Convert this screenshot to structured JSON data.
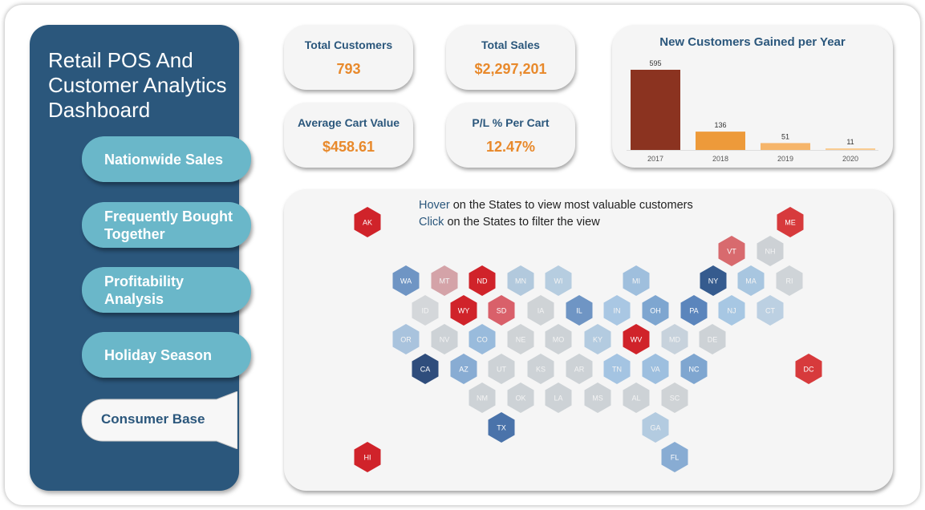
{
  "sidebar": {
    "title": "Retail POS And\nCustomer Analytics\nDashboard",
    "nav": [
      {
        "label": "Nationwide Sales"
      },
      {
        "label": "Frequently Bought\nTogether"
      },
      {
        "label": "Profitability\nAnalysis"
      },
      {
        "label": "Holiday Season"
      }
    ],
    "active": {
      "label": "Consumer Base"
    }
  },
  "kpis": [
    {
      "label": "Total Customers",
      "value": "793"
    },
    {
      "label": "Total Sales",
      "value": "$2,297,201"
    },
    {
      "label": "Average Cart Value",
      "value": "$458.61"
    },
    {
      "label": "P/L % Per Cart",
      "value": "12.47%"
    }
  ],
  "chart_data": {
    "type": "bar",
    "title": "New Customers Gained per Year",
    "categories": [
      "2017",
      "2018",
      "2019",
      "2020"
    ],
    "values": [
      595,
      136,
      51,
      11
    ],
    "colors": [
      "#8b3320",
      "#ed9a3a",
      "#f6b56a",
      "#f9cc92"
    ],
    "xlabel": "",
    "ylabel": "",
    "grid": false
  },
  "map": {
    "hover_word": "Hover",
    "hover_rest": " on the States to view most valuable customers",
    "click_word": "Click",
    "click_rest": " on the States to filter the view",
    "states": [
      {
        "code": "AK",
        "color": "#d0232a"
      },
      {
        "code": "ME",
        "color": "#d73a3c"
      },
      {
        "code": "VT",
        "color": "#d86a6e"
      },
      {
        "code": "NH",
        "color": "#cdd1d5"
      },
      {
        "code": "WA",
        "color": "#6f95c4"
      },
      {
        "code": "MT",
        "color": "#d4a3a8"
      },
      {
        "code": "ND",
        "color": "#d0232a"
      },
      {
        "code": "MN",
        "color": "#b2c9dd"
      },
      {
        "code": "WI",
        "color": "#b6cde0"
      },
      {
        "code": "MI",
        "color": "#9fbfdd"
      },
      {
        "code": "NY",
        "color": "#355b8e"
      },
      {
        "code": "MA",
        "color": "#a8c6e0"
      },
      {
        "code": "RI",
        "color": "#cfd4d8"
      },
      {
        "code": "ID",
        "color": "#d4d7da"
      },
      {
        "code": "WY",
        "color": "#d0232a"
      },
      {
        "code": "SD",
        "color": "#d9606a"
      },
      {
        "code": "IA",
        "color": "#cfd3d6"
      },
      {
        "code": "IL",
        "color": "#6f95c4"
      },
      {
        "code": "IN",
        "color": "#a9c7e3"
      },
      {
        "code": "OH",
        "color": "#7ea6d0"
      },
      {
        "code": "PA",
        "color": "#5b85bc"
      },
      {
        "code": "NJ",
        "color": "#a7c7e3"
      },
      {
        "code": "CT",
        "color": "#bcd0e2"
      },
      {
        "code": "OR",
        "color": "#a9c3dd"
      },
      {
        "code": "NV",
        "color": "#cdd2d6"
      },
      {
        "code": "CO",
        "color": "#99bbdc"
      },
      {
        "code": "NE",
        "color": "#cfd3d6"
      },
      {
        "code": "MO",
        "color": "#cdd2d6"
      },
      {
        "code": "KY",
        "color": "#b3cbe0"
      },
      {
        "code": "WV",
        "color": "#d0232a"
      },
      {
        "code": "MD",
        "color": "#c7d2dc"
      },
      {
        "code": "DE",
        "color": "#cdd2d6"
      },
      {
        "code": "DC",
        "color": "#d73a3c"
      },
      {
        "code": "CA",
        "color": "#2f4d7c"
      },
      {
        "code": "AZ",
        "color": "#88acd3"
      },
      {
        "code": "UT",
        "color": "#cdd2d6"
      },
      {
        "code": "KS",
        "color": "#cdd2d6"
      },
      {
        "code": "AR",
        "color": "#cdd2d6"
      },
      {
        "code": "TN",
        "color": "#a4c4e2"
      },
      {
        "code": "VA",
        "color": "#9dbfdf"
      },
      {
        "code": "NC",
        "color": "#7fa6d0"
      },
      {
        "code": "NM",
        "color": "#cdd2d6"
      },
      {
        "code": "OK",
        "color": "#cdd2d6"
      },
      {
        "code": "LA",
        "color": "#cdd2d6"
      },
      {
        "code": "MS",
        "color": "#cdd2d6"
      },
      {
        "code": "AL",
        "color": "#cdd2d6"
      },
      {
        "code": "SC",
        "color": "#cfd3d6"
      },
      {
        "code": "TX",
        "color": "#4a73aa"
      },
      {
        "code": "GA",
        "color": "#b3cbe0"
      },
      {
        "code": "HI",
        "color": "#d0232a"
      },
      {
        "code": "FL",
        "color": "#88acd3"
      }
    ]
  }
}
